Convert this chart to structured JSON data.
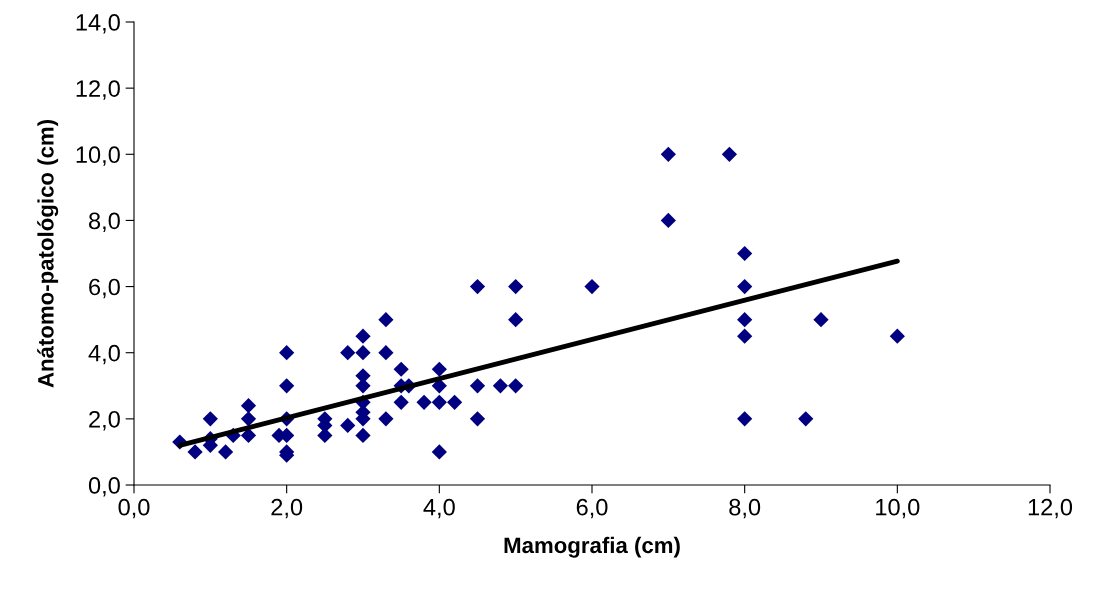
{
  "chart_data": {
    "type": "scatter",
    "xlabel": "Mamografia (cm)",
    "ylabel": "Anátomo-patológico (cm)",
    "xlim": [
      0,
      12
    ],
    "ylim": [
      0,
      14
    ],
    "xticks": [
      {
        "value": 0,
        "label": "0,0"
      },
      {
        "value": 2,
        "label": "2,0"
      },
      {
        "value": 4,
        "label": "4,0"
      },
      {
        "value": 6,
        "label": "6,0"
      },
      {
        "value": 8,
        "label": "8,0"
      },
      {
        "value": 10,
        "label": "10,0"
      },
      {
        "value": 12,
        "label": "12,0"
      }
    ],
    "yticks": [
      {
        "value": 0,
        "label": "0,0"
      },
      {
        "value": 2,
        "label": "2,0"
      },
      {
        "value": 4,
        "label": "4,0"
      },
      {
        "value": 6,
        "label": "6,0"
      },
      {
        "value": 8,
        "label": "8,0"
      },
      {
        "value": 10,
        "label": "10,0"
      },
      {
        "value": 12,
        "label": "12,0"
      },
      {
        "value": 14,
        "label": "14,0"
      }
    ],
    "grid": false,
    "legend": false,
    "series": [
      {
        "marker": "diamond",
        "color": "#000080",
        "x": [
          0.6,
          0.8,
          1.0,
          1.0,
          1.0,
          1.2,
          1.3,
          1.5,
          1.5,
          1.5,
          1.9,
          2.0,
          2.0,
          2.0,
          2.0,
          2.0,
          2.0,
          2.5,
          2.5,
          2.5,
          2.8,
          2.8,
          3.0,
          3.0,
          3.0,
          3.0,
          3.0,
          3.0,
          3.0,
          3.0,
          3.3,
          3.3,
          3.3,
          3.5,
          3.5,
          3.5,
          3.6,
          3.8,
          4.0,
          4.0,
          4.0,
          4.0,
          4.2,
          4.5,
          4.5,
          4.5,
          4.8,
          5.0,
          5.0,
          5.0,
          6.0,
          7.0,
          7.0,
          7.8,
          8.0,
          8.0,
          8.0,
          8.0,
          8.0,
          8.8,
          9.0,
          10.0
        ],
        "values": [
          1.3,
          1.0,
          2.0,
          1.4,
          1.2,
          1.0,
          1.5,
          2.4,
          2.0,
          1.5,
          1.5,
          4.0,
          3.0,
          2.0,
          1.5,
          1.0,
          0.9,
          2.0,
          1.8,
          1.5,
          4.0,
          1.8,
          4.5,
          4.0,
          3.3,
          3.0,
          2.5,
          2.2,
          2.0,
          1.5,
          5.0,
          4.0,
          2.0,
          3.5,
          3.0,
          2.5,
          3.0,
          2.5,
          3.5,
          3.0,
          2.5,
          1.0,
          2.5,
          6.0,
          3.0,
          2.0,
          3.0,
          6.0,
          5.0,
          3.0,
          6.0,
          10.0,
          8.0,
          10.0,
          7.0,
          6.0,
          5.0,
          4.5,
          2.0,
          2.0,
          5.0,
          4.5
        ]
      },
      {
        "type": "line",
        "color": "#000000",
        "x": [
          0.6,
          10.0
        ],
        "values": [
          1.2,
          6.77
        ]
      }
    ]
  }
}
